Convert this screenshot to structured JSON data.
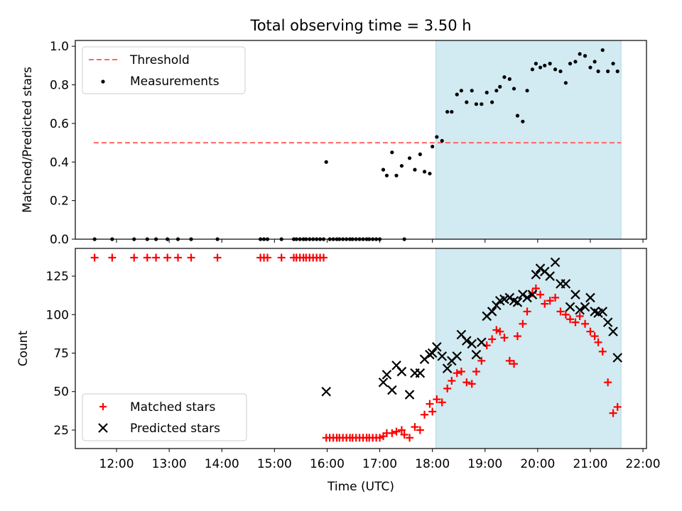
{
  "title": "Total observing time = 3.50 h",
  "colors": {
    "shade": "#add8e6",
    "threshold": "#ff6666",
    "matched": "#ff0000",
    "predicted": "#000000",
    "measurements": "#000000"
  },
  "chart_data": [
    {
      "type": "scatter",
      "ylabel": "Matched/Predicted stars",
      "xlim": [
        "11:13",
        "22:04"
      ],
      "ylim": [
        0,
        1.03
      ],
      "yticks": [
        "0.0",
        "0.2",
        "0.4",
        "0.6",
        "0.8",
        "1.0"
      ],
      "shaded_interval": [
        "18:04",
        "21:35"
      ],
      "threshold": {
        "y": 0.5,
        "x_range": [
          "11:34",
          "21:35"
        ]
      },
      "legend": {
        "position": "upper-left",
        "entries": [
          "Threshold",
          "Measurements"
        ]
      },
      "series": [
        {
          "name": "Measurements",
          "x": [
            "11:35",
            "11:55",
            "12:20",
            "12:35",
            "12:45",
            "12:58",
            "13:10",
            "13:25",
            "13:55",
            "14:44",
            "14:48",
            "14:52",
            "15:08",
            "15:22",
            "15:25",
            "15:29",
            "15:33",
            "15:36",
            "15:40",
            "15:44",
            "15:48",
            "15:52",
            "15:56",
            "15:59",
            "16:03",
            "16:07",
            "16:11",
            "16:14",
            "16:18",
            "16:22",
            "16:26",
            "16:29",
            "16:33",
            "16:37",
            "16:41",
            "16:45",
            "16:48",
            "16:52",
            "16:56",
            "17:00",
            "17:04",
            "17:08",
            "17:14",
            "17:19",
            "17:25",
            "17:28",
            "17:34",
            "17:40",
            "17:46",
            "17:51",
            "17:57",
            "18:00",
            "18:05",
            "18:11",
            "18:17",
            "18:22",
            "18:28",
            "18:33",
            "18:39",
            "18:45",
            "18:50",
            "18:56",
            "19:02",
            "19:08",
            "19:13",
            "19:17",
            "19:22",
            "19:28",
            "19:33",
            "19:37",
            "19:43",
            "19:48",
            "19:54",
            "19:58",
            "20:03",
            "20:08",
            "20:14",
            "20:20",
            "20:26",
            "20:32",
            "20:37",
            "20:43",
            "20:48",
            "20:54",
            "21:00",
            "21:05",
            "21:09",
            "21:14",
            "21:20",
            "21:26",
            "21:31"
          ],
          "y": [
            0,
            0,
            0,
            0,
            0,
            0,
            0,
            0,
            0,
            0,
            0,
            0,
            0,
            0,
            0,
            0,
            0,
            0,
            0,
            0,
            0,
            0,
            0,
            0.4,
            0,
            0,
            0,
            0,
            0,
            0,
            0,
            0,
            0,
            0,
            0,
            0,
            0,
            0,
            0,
            0,
            0.36,
            0.33,
            0.45,
            0.33,
            0.38,
            0,
            0.42,
            0.36,
            0.44,
            0.35,
            0.34,
            0.48,
            0.53,
            0.51,
            0.66,
            0.66,
            0.75,
            0.77,
            0.71,
            0.77,
            0.7,
            0.7,
            0.76,
            0.71,
            0.77,
            0.79,
            0.84,
            0.83,
            0.78,
            0.64,
            0.61,
            0.77,
            0.88,
            0.91,
            0.89,
            0.9,
            0.91,
            0.88,
            0.87,
            0.81,
            0.91,
            0.92,
            0.96,
            0.95,
            0.89,
            0.92,
            0.87,
            0.98,
            0.87,
            0.91,
            0.87
          ]
        }
      ]
    },
    {
      "type": "scatter",
      "xlabel": "Time (UTC)",
      "ylabel": "Count",
      "xlim": [
        "11:13",
        "22:04"
      ],
      "ylim": [
        13,
        143
      ],
      "yticks": [
        "25",
        "50",
        "75",
        "100",
        "125"
      ],
      "xticks": [
        "12:00",
        "13:00",
        "14:00",
        "15:00",
        "16:00",
        "17:00",
        "18:00",
        "19:00",
        "20:00",
        "21:00",
        "22:00"
      ],
      "shaded_interval": [
        "18:04",
        "21:35"
      ],
      "legend": {
        "position": "lower-left",
        "entries": [
          "Matched stars",
          "Predicted stars"
        ]
      },
      "series": [
        {
          "name": "Matched stars",
          "x": [
            "11:35",
            "11:55",
            "12:20",
            "12:35",
            "12:45",
            "12:58",
            "13:10",
            "13:25",
            "13:55",
            "14:44",
            "14:48",
            "14:52",
            "15:08",
            "15:22",
            "15:25",
            "15:29",
            "15:33",
            "15:36",
            "15:40",
            "15:44",
            "15:48",
            "15:52",
            "15:56",
            "15:59",
            "16:03",
            "16:07",
            "16:11",
            "16:14",
            "16:18",
            "16:22",
            "16:26",
            "16:29",
            "16:33",
            "16:37",
            "16:41",
            "16:45",
            "16:48",
            "16:52",
            "16:56",
            "17:00",
            "17:04",
            "17:08",
            "17:14",
            "17:19",
            "17:25",
            "17:28",
            "17:34",
            "17:40",
            "17:46",
            "17:51",
            "17:57",
            "18:00",
            "18:05",
            "18:11",
            "18:17",
            "18:22",
            "18:28",
            "18:33",
            "18:39",
            "18:45",
            "18:50",
            "18:56",
            "19:02",
            "19:08",
            "19:13",
            "19:17",
            "19:22",
            "19:28",
            "19:33",
            "19:37",
            "19:43",
            "19:48",
            "19:54",
            "19:58",
            "20:03",
            "20:08",
            "20:14",
            "20:20",
            "20:26",
            "20:32",
            "20:37",
            "20:43",
            "20:48",
            "20:54",
            "21:00",
            "21:05",
            "21:09",
            "21:14",
            "21:20",
            "21:26",
            "21:31"
          ],
          "y": [
            137,
            137,
            137,
            137,
            137,
            137,
            137,
            137,
            137,
            137,
            137,
            137,
            137,
            137,
            137,
            137,
            137,
            137,
            137,
            137,
            137,
            137,
            137,
            20,
            20,
            20,
            20,
            20,
            20,
            20,
            20,
            20,
            20,
            20,
            20,
            20,
            20,
            20,
            20,
            20,
            21,
            23,
            23,
            24,
            25,
            22,
            20,
            27,
            25,
            35,
            42,
            37,
            45,
            43,
            52,
            57,
            62,
            63,
            56,
            55,
            63,
            70,
            80,
            84,
            90,
            89,
            85,
            70,
            68,
            86,
            94,
            102,
            114,
            117,
            113,
            107,
            109,
            111,
            102,
            100,
            97,
            95,
            99,
            94,
            89,
            86,
            82,
            76,
            56,
            36,
            40
          ]
        },
        {
          "name": "Predicted stars",
          "x": [
            "15:59",
            "17:04",
            "17:08",
            "17:14",
            "17:19",
            "17:25",
            "17:34",
            "17:40",
            "17:46",
            "17:51",
            "17:57",
            "18:00",
            "18:05",
            "18:11",
            "18:17",
            "18:22",
            "18:28",
            "18:33",
            "18:39",
            "18:45",
            "18:50",
            "18:56",
            "19:02",
            "19:08",
            "19:13",
            "19:17",
            "19:22",
            "19:28",
            "19:33",
            "19:37",
            "19:43",
            "19:48",
            "19:54",
            "19:58",
            "20:03",
            "20:08",
            "20:14",
            "20:20",
            "20:26",
            "20:32",
            "20:37",
            "20:43",
            "20:48",
            "20:54",
            "21:00",
            "21:05",
            "21:09",
            "21:14",
            "21:20",
            "21:26",
            "21:31"
          ],
          "y": [
            50,
            56,
            61,
            51,
            67,
            63,
            48,
            62,
            62,
            71,
            74,
            75,
            79,
            73,
            65,
            70,
            73,
            87,
            83,
            81,
            74,
            82,
            99,
            102,
            106,
            109,
            110,
            111,
            109,
            108,
            113,
            111,
            113,
            126,
            130,
            128,
            125,
            134,
            120,
            120,
            105,
            113,
            103,
            105,
            111,
            102,
            101,
            102,
            95,
            89,
            72
          ]
        }
      ]
    }
  ]
}
